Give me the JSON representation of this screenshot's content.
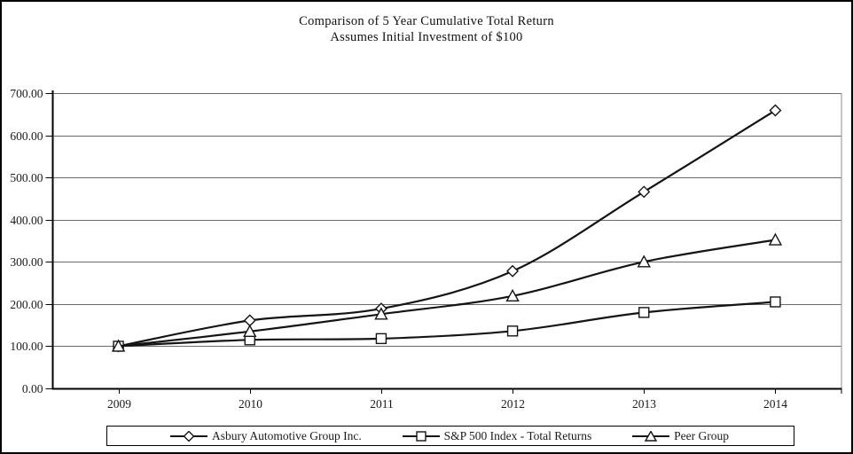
{
  "title": {
    "line1": "Comparison of 5 Year Cumulative Total Return",
    "line2": "Assumes Initial Investment of $100"
  },
  "chart_data": {
    "type": "line",
    "x": [
      "2009",
      "2010",
      "2011",
      "2012",
      "2013",
      "2014"
    ],
    "series": [
      {
        "name": "Asbury Automotive Group Inc.",
        "marker": "diamond",
        "values": [
          100.0,
          161.0,
          189.0,
          278.0,
          466.0,
          659.0
        ]
      },
      {
        "name": "S&P 500 Index - Total Returns",
        "marker": "square",
        "values": [
          100.0,
          115.0,
          118.0,
          136.0,
          180.0,
          205.0
        ]
      },
      {
        "name": "Peer Group",
        "marker": "triangle",
        "values": [
          100.0,
          135.0,
          176.0,
          219.0,
          300.0,
          352.0
        ]
      }
    ],
    "ylim": [
      0,
      700
    ],
    "ytick_step": 100,
    "yticks": [
      "0.00",
      "100.00",
      "200.00",
      "300.00",
      "400.00",
      "500.00",
      "600.00",
      "700.00"
    ],
    "grid": "horizontal",
    "legend_position": "bottom",
    "line_color": "#141414",
    "gridline_color": "#6b6b6b",
    "axis_color": "#000000",
    "plot_border_color": "#8f8f8f",
    "marker_fill": "#ffffff"
  }
}
